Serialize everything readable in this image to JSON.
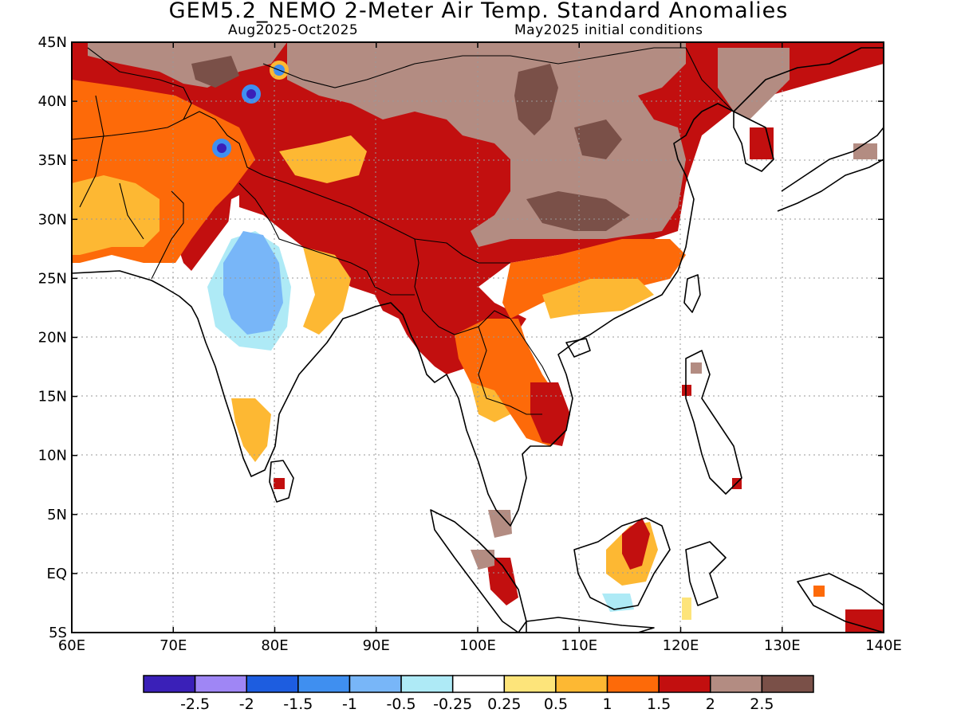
{
  "title": "GEM5.2_NEMO 2-Meter Air Temp. Standard Anomalies",
  "period": "Aug2025-Oct2025",
  "init": "May2025 initial conditions",
  "map": {
    "lon_ticks": [
      "60E",
      "70E",
      "80E",
      "90E",
      "100E",
      "110E",
      "120E",
      "130E",
      "140E"
    ],
    "lat_ticks": [
      "45N",
      "40N",
      "35N",
      "30N",
      "25N",
      "20N",
      "15N",
      "10N",
      "5N",
      "EQ",
      "5S"
    ],
    "lon_range": [
      60,
      140
    ],
    "lat_range": [
      -5,
      45
    ]
  },
  "legend": {
    "colors": [
      "#3a20b8",
      "#9f86f5",
      "#1d5de0",
      "#3f8ff0",
      "#78b6f8",
      "#aeeaf6",
      "#ffffff",
      "#fde47a",
      "#fdb833",
      "#fd6a09",
      "#c20f0f",
      "#b38c82",
      "#7a5048"
    ],
    "labels": [
      "-2.5",
      "-2",
      "-1.5",
      "-1",
      "-0.5",
      "-0.25",
      "0.25",
      "0.5",
      "1",
      "1.5",
      "2",
      "2.5"
    ]
  }
}
